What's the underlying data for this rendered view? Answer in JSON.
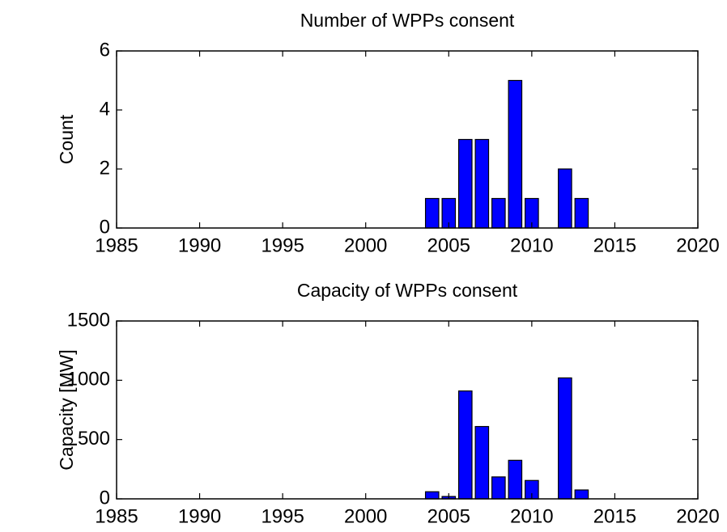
{
  "chart_data": [
    {
      "type": "bar",
      "title": "Number of WPPs consent",
      "ylabel": "Count",
      "x": [
        2004,
        2005,
        2006,
        2007,
        2008,
        2009,
        2010,
        2012,
        2013
      ],
      "values": [
        1,
        1,
        3,
        3,
        1,
        5,
        1,
        2,
        1
      ],
      "color": "#0000ff",
      "xlim": [
        1985,
        2020
      ],
      "xticks": [
        1985,
        1990,
        1995,
        2000,
        2005,
        2010,
        2015,
        2020
      ],
      "ylim": [
        0,
        6
      ],
      "yticks": [
        0,
        2,
        4,
        6
      ]
    },
    {
      "type": "bar",
      "title": "Capacity of WPPs consent",
      "ylabel": "Capacity [MW]",
      "x": [
        2004,
        2005,
        2006,
        2007,
        2008,
        2009,
        2010,
        2012,
        2013
      ],
      "values": [
        60,
        20,
        910,
        610,
        185,
        325,
        155,
        1020,
        75
      ],
      "color": "#0000ff",
      "xlim": [
        1985,
        2020
      ],
      "xticks": [
        1985,
        1990,
        1995,
        2000,
        2005,
        2010,
        2015,
        2020
      ],
      "ylim": [
        0,
        1500
      ],
      "yticks": [
        0,
        500,
        1000,
        1500
      ]
    }
  ]
}
